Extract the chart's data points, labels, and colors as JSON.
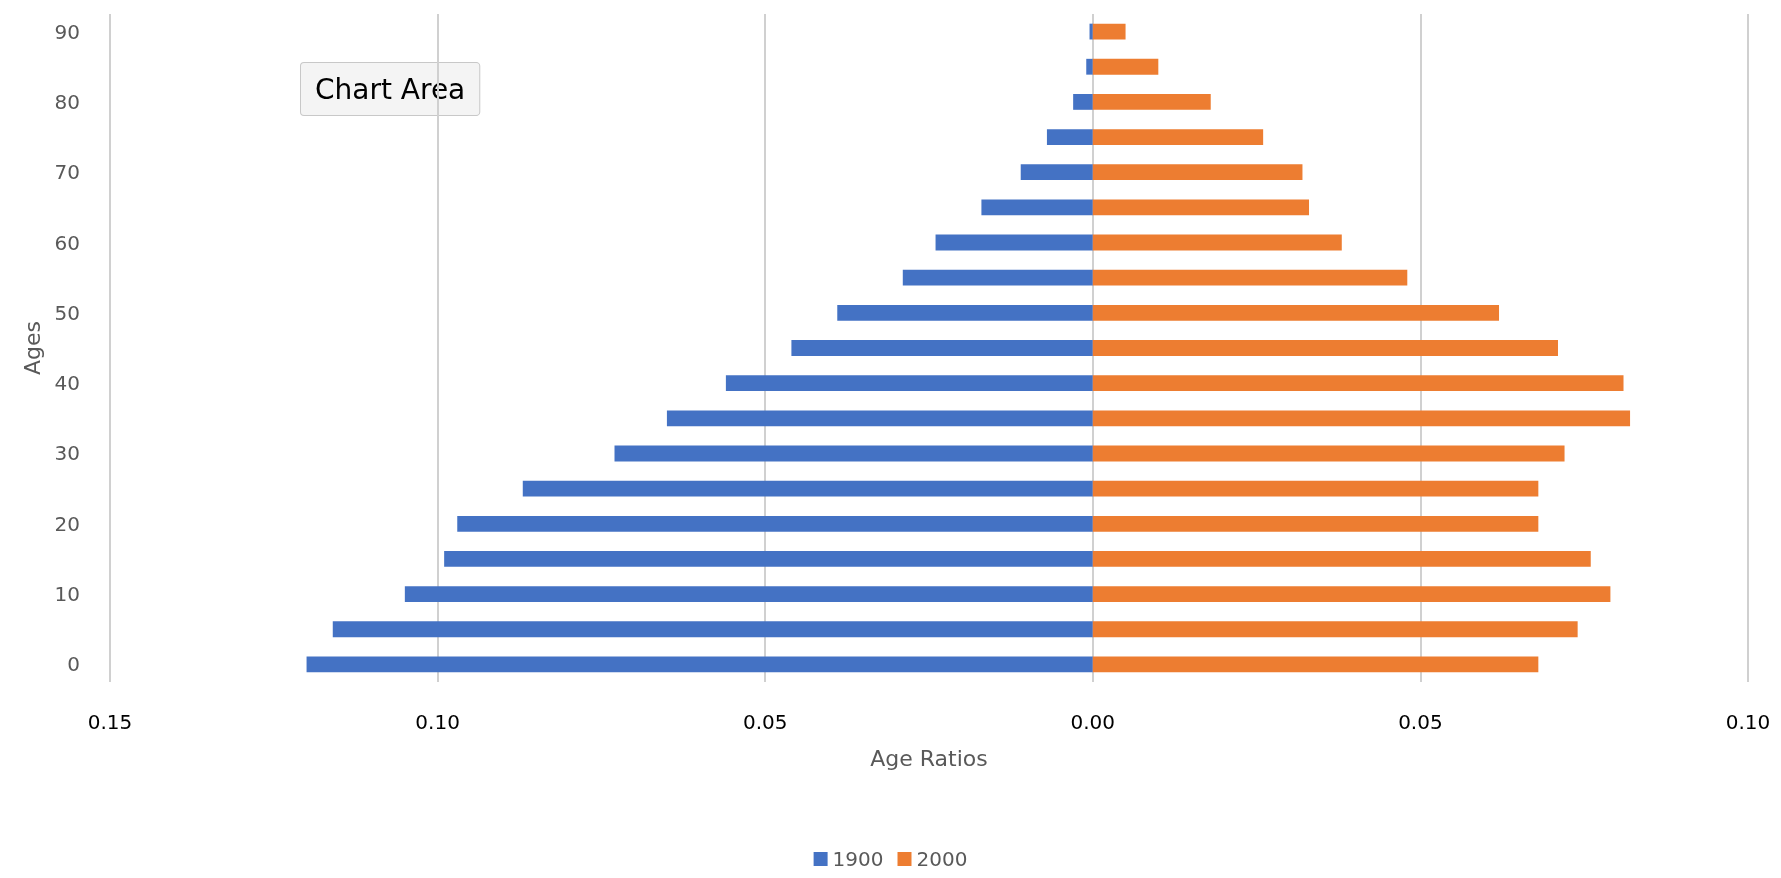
{
  "chart_data": {
    "type": "bar",
    "orientation": "horizontal",
    "xlabel": "Age Ratios",
    "ylabel": "Ages",
    "categories": [
      "90",
      null,
      "80",
      null,
      "70",
      null,
      "60",
      null,
      "50",
      null,
      "40",
      null,
      "30",
      null,
      "20",
      null,
      "10",
      null,
      "0"
    ],
    "series": [
      {
        "name": "1900",
        "color": "#4472c4",
        "values": [
          -0.0005,
          -0.001,
          -0.003,
          -0.007,
          -0.011,
          -0.017,
          -0.024,
          -0.029,
          -0.039,
          -0.046,
          -0.056,
          -0.065,
          -0.073,
          -0.087,
          -0.097,
          -0.099,
          -0.105,
          -0.116,
          -0.12
        ]
      },
      {
        "name": "2000",
        "color": "#ed7d31",
        "values": [
          0.005,
          0.01,
          0.018,
          0.026,
          0.032,
          0.033,
          0.038,
          0.048,
          0.062,
          0.071,
          0.081,
          0.082,
          0.072,
          0.068,
          0.068,
          0.076,
          0.079,
          0.074,
          0.068
        ]
      }
    ],
    "xlim": [
      -0.15,
      0.1
    ],
    "xticks": [
      {
        "value": -0.15,
        "label": "0.15"
      },
      {
        "value": -0.1,
        "label": "0.10"
      },
      {
        "value": -0.05,
        "label": "0.05"
      },
      {
        "value": 0,
        "label": "0.00"
      },
      {
        "value": 0.05,
        "label": "0.05"
      },
      {
        "value": 0.1,
        "label": "0.10"
      }
    ],
    "grid": "x",
    "legend": "bottom",
    "stacked": true,
    "annotations": [
      "Chart Area"
    ]
  }
}
